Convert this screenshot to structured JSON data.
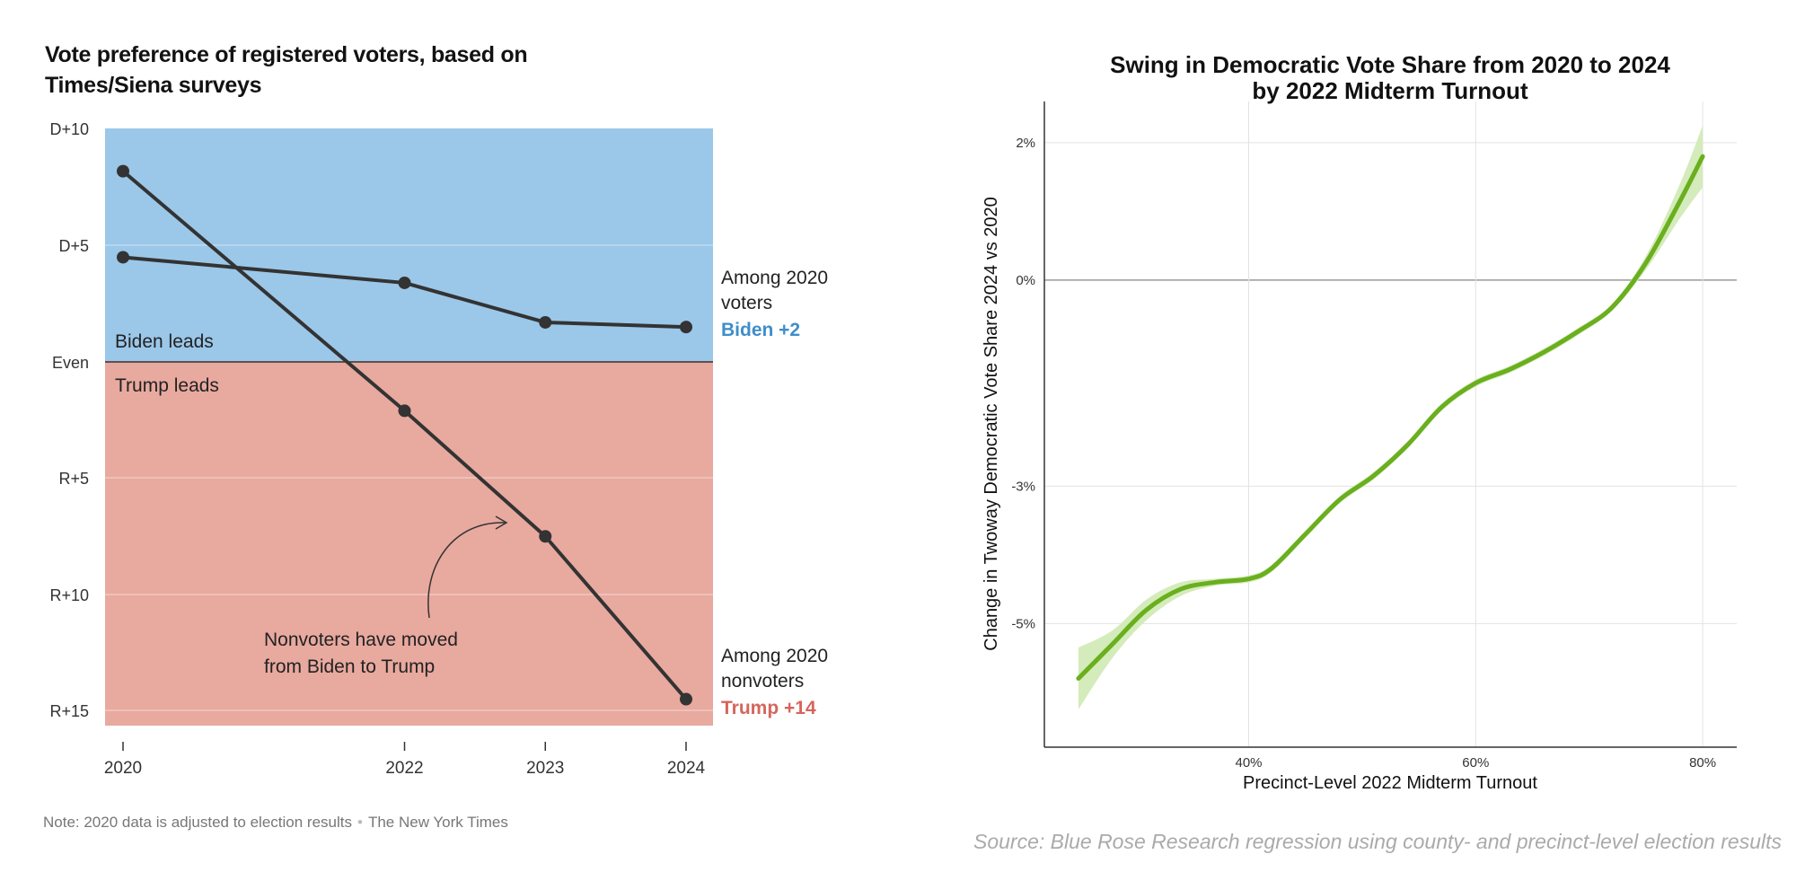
{
  "left_chart": {
    "title": "Vote preference of registered voters, based on Times/Siena surveys",
    "y_ticks": [
      "D+10",
      "D+5",
      "Even",
      "R+5",
      "R+10",
      "R+15"
    ],
    "x_ticks": [
      "2020",
      "2022",
      "2023",
      "2024"
    ],
    "region_labels": {
      "top": "Biden leads",
      "bottom": "Trump leads"
    },
    "series_labels": {
      "voters": {
        "line1": "Among 2020",
        "line2": "voters",
        "value": "Biden +2"
      },
      "nonvoters": {
        "line1": "Among 2020",
        "line2": "nonvoters",
        "value": "Trump +14"
      }
    },
    "annotation": {
      "line1": "Nonvoters have moved",
      "line2": "from Biden to Trump"
    },
    "note": "Note: 2020 data is adjusted to election results",
    "credit": "The New York Times"
  },
  "right_chart": {
    "title_line1": "Swing in Democratic Vote Share from 2020 to 2024",
    "title_line2": "by 2022 Midterm Turnout",
    "xlabel": "Precinct-Level 2022 Midterm Turnout",
    "ylabel": "Change in Twoway Democratic Vote Share 2024 vs 2020",
    "y_ticks": [
      "2%",
      "0%",
      "-3%",
      "-5%"
    ],
    "x_ticks": [
      "40%",
      "60%",
      "80%"
    ],
    "source": "Source: Blue Rose Research regression using county- and precinct-level election results"
  },
  "colors": {
    "biden_region": "#9bc7e9",
    "trump_region": "#e8a99f",
    "line": "#333333",
    "biden_text": "#3f8ec9",
    "trump_text": "#d6655c",
    "fit_line": "#6aaf1e",
    "fit_band": "#d4ebbb"
  },
  "chart_data": [
    {
      "type": "line",
      "title": "Vote preference of registered voters, based on Times/Siena surveys",
      "x": [
        2020,
        2022,
        2023,
        2024
      ],
      "series": [
        {
          "name": "Among 2020 voters",
          "values": [
            4.5,
            3.4,
            1.7,
            1.5
          ]
        },
        {
          "name": "Among 2020 nonvoters",
          "values": [
            8.2,
            -2.1,
            -7.5,
            -14.5
          ]
        }
      ],
      "y_unit": "margin (positive = Biden lead, negative = Trump lead)",
      "ylim": [
        -15,
        10
      ],
      "end_labels": {
        "voters": "Biden +2",
        "nonvoters": "Trump +14"
      }
    },
    {
      "type": "line",
      "title": "Swing in Democratic Vote Share from 2020 to 2024 by 2022 Midterm Turnout",
      "xlabel": "Precinct-Level 2022 Midterm Turnout",
      "ylabel": "Change in Twoway Democratic Vote Share 2024 vs 2020",
      "x": [
        25,
        28,
        31,
        34,
        37,
        40,
        42,
        45,
        48,
        51,
        54,
        57,
        60,
        63,
        66,
        69,
        72,
        75,
        78,
        80
      ],
      "series": [
        {
          "values": [
            -5.8,
            -5.3,
            -4.8,
            -4.5,
            -4.4,
            -4.35,
            -4.2,
            -3.7,
            -3.2,
            -2.85,
            -2.4,
            -1.85,
            -1.5,
            -1.3,
            -1.05,
            -0.75,
            -0.4,
            0.25,
            1.15,
            1.8
          ]
        }
      ],
      "band": {
        "lower": [
          -6.25,
          -5.5,
          -4.95,
          -4.6,
          -4.45,
          -4.4,
          -4.25,
          -3.75,
          -3.25,
          -2.9,
          -2.45,
          -1.9,
          -1.55,
          -1.35,
          -1.1,
          -0.8,
          -0.45,
          0.15,
          0.9,
          1.35
        ],
        "upper": [
          -5.35,
          -5.1,
          -4.65,
          -4.4,
          -4.35,
          -4.3,
          -4.15,
          -3.65,
          -3.15,
          -2.8,
          -2.35,
          -1.8,
          -1.45,
          -1.25,
          -1.0,
          -0.7,
          -0.35,
          0.35,
          1.4,
          2.25
        ]
      },
      "xlim": [
        22,
        83
      ],
      "ylim": [
        -6.8,
        2.6
      ],
      "grid": true
    }
  ]
}
